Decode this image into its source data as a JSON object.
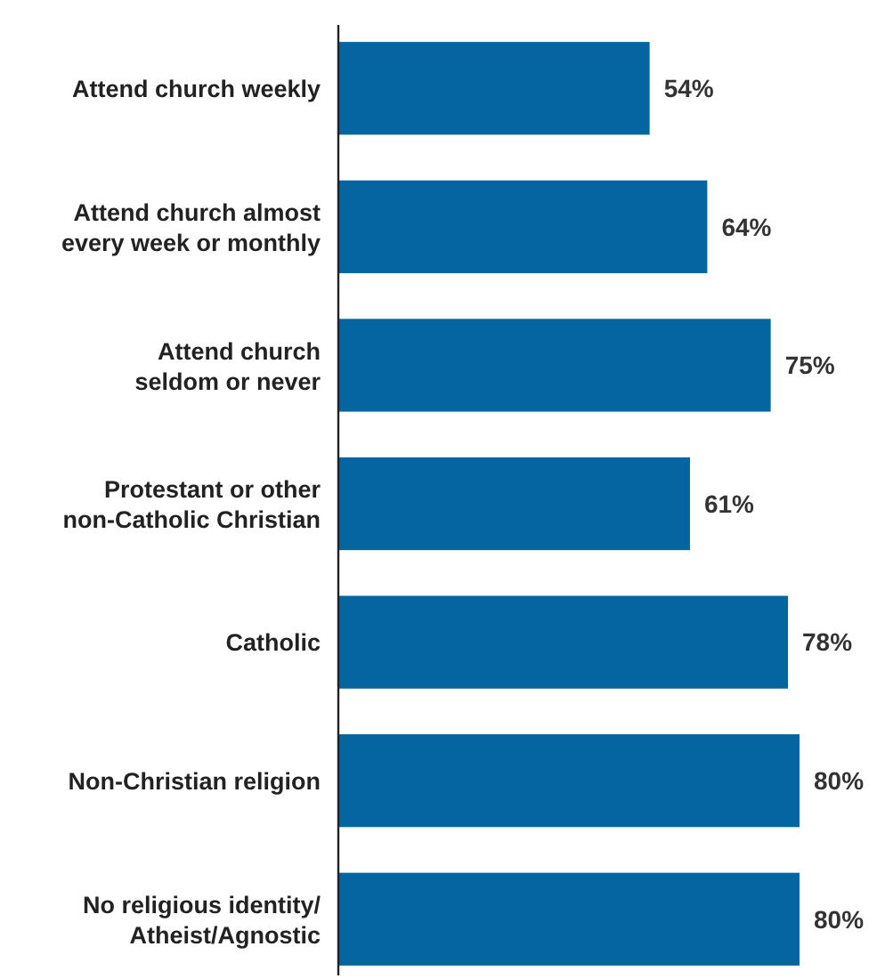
{
  "chart_data": {
    "type": "bar",
    "orientation": "horizontal",
    "categories": [
      "Attend church weekly",
      "Attend church almost\nevery week or monthly",
      "Attend church\nseldom or never",
      "Protestant or other\nnon-Catholic Christian",
      "Catholic",
      "Non-Christian religion",
      "No religious identity/\nAtheist/Agnostic"
    ],
    "values": [
      54,
      64,
      75,
      61,
      78,
      80,
      80
    ],
    "value_labels": [
      "54%",
      "64%",
      "75%",
      "61%",
      "78%",
      "80%",
      "80%"
    ],
    "color": "#0565a0",
    "tick_labels": "y"
  }
}
